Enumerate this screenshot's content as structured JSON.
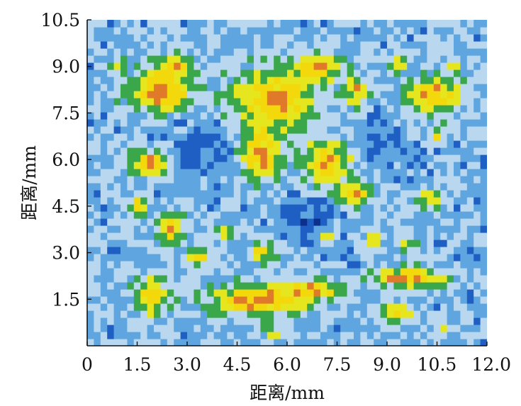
{
  "chart_data": {
    "type": "heatmap",
    "title": "",
    "xlabel": "距离/mm",
    "ylabel": "距离/mm",
    "xlim": [
      0,
      12.0
    ],
    "ylim": [
      0,
      10.5
    ],
    "x_ticks": [
      "0",
      "1.5",
      "3.0",
      "4.5",
      "6.0",
      "7.5",
      "9.0",
      "10.5",
      "12.0"
    ],
    "y_ticks": [
      "1.5",
      "3.0",
      "4.5",
      "6.0",
      "7.5",
      "9.0",
      "10.5"
    ],
    "grid": false,
    "legend": "none",
    "colormap": [
      "#0d2f8c",
      "#1f5fc4",
      "#5fa6e0",
      "#b9d8ef",
      "#3aa84a",
      "#e6e61e",
      "#f3d90c",
      "#e07a2a"
    ],
    "background_level": 0.35,
    "low_regions": [
      {
        "x": 3.5,
        "y": 6.4,
        "rx": 1.1,
        "ry": 1.1,
        "level": 0.05
      },
      {
        "x": 6.7,
        "y": 4.1,
        "rx": 1.1,
        "ry": 1.0,
        "level": 0.05
      },
      {
        "x": 8.8,
        "y": 6.4,
        "rx": 1.2,
        "ry": 1.1,
        "level": 0.1
      }
    ],
    "high_regions": [
      {
        "x": 2.2,
        "y": 8.2,
        "rx": 1.1,
        "ry": 0.8,
        "level": 0.95
      },
      {
        "x": 2.6,
        "y": 9.0,
        "rx": 0.6,
        "ry": 0.5,
        "level": 0.9
      },
      {
        "x": 5.6,
        "y": 7.9,
        "rx": 1.5,
        "ry": 1.2,
        "level": 0.95
      },
      {
        "x": 5.2,
        "y": 6.2,
        "rx": 0.7,
        "ry": 1.0,
        "level": 0.9
      },
      {
        "x": 7.2,
        "y": 5.9,
        "rx": 0.9,
        "ry": 0.9,
        "level": 0.9
      },
      {
        "x": 8.0,
        "y": 4.9,
        "rx": 0.7,
        "ry": 0.5,
        "level": 0.85
      },
      {
        "x": 6.9,
        "y": 9.0,
        "rx": 0.8,
        "ry": 0.6,
        "level": 0.9
      },
      {
        "x": 8.1,
        "y": 8.2,
        "rx": 0.5,
        "ry": 0.6,
        "level": 0.85
      },
      {
        "x": 10.4,
        "y": 8.1,
        "rx": 1.0,
        "ry": 0.7,
        "level": 0.9
      },
      {
        "x": 9.4,
        "y": 9.1,
        "rx": 0.3,
        "ry": 0.3,
        "level": 0.8
      },
      {
        "x": 1.9,
        "y": 5.9,
        "rx": 0.7,
        "ry": 0.5,
        "level": 0.9
      },
      {
        "x": 1.6,
        "y": 4.5,
        "rx": 0.3,
        "ry": 0.5,
        "level": 0.8
      },
      {
        "x": 2.5,
        "y": 3.8,
        "rx": 0.5,
        "ry": 0.7,
        "level": 0.85
      },
      {
        "x": 1.9,
        "y": 1.6,
        "rx": 0.6,
        "ry": 0.7,
        "level": 0.9
      },
      {
        "x": 5.2,
        "y": 1.5,
        "rx": 1.9,
        "ry": 0.6,
        "level": 0.95
      },
      {
        "x": 6.7,
        "y": 1.8,
        "rx": 1.0,
        "ry": 0.4,
        "level": 0.9
      },
      {
        "x": 9.6,
        "y": 2.2,
        "rx": 1.3,
        "ry": 0.4,
        "level": 0.9
      },
      {
        "x": 9.3,
        "y": 1.1,
        "rx": 0.6,
        "ry": 0.3,
        "level": 0.85
      },
      {
        "x": 3.4,
        "y": 2.9,
        "rx": 0.4,
        "ry": 0.4,
        "level": 0.8
      },
      {
        "x": 5.3,
        "y": 3.0,
        "rx": 0.5,
        "ry": 0.4,
        "level": 0.8
      },
      {
        "x": 8.6,
        "y": 3.4,
        "rx": 0.3,
        "ry": 0.4,
        "level": 0.8
      },
      {
        "x": 9.6,
        "y": 3.3,
        "rx": 0.4,
        "ry": 0.3,
        "level": 0.75
      },
      {
        "x": 10.3,
        "y": 4.7,
        "rx": 0.5,
        "ry": 0.4,
        "level": 0.75
      },
      {
        "x": 10.5,
        "y": 6.8,
        "rx": 0.3,
        "ry": 0.3,
        "level": 0.75
      },
      {
        "x": 4.2,
        "y": 3.7,
        "rx": 0.3,
        "ry": 0.3,
        "level": 0.75
      },
      {
        "x": 0.9,
        "y": 9.0,
        "rx": 0.3,
        "ry": 0.3,
        "level": 0.75
      },
      {
        "x": 11.0,
        "y": 9.0,
        "rx": 0.3,
        "ry": 0.3,
        "level": 0.7
      },
      {
        "x": 5.6,
        "y": 0.4,
        "rx": 0.4,
        "ry": 0.2,
        "level": 0.7
      },
      {
        "x": 10.7,
        "y": 0.5,
        "rx": 0.3,
        "ry": 0.2,
        "level": 0.7
      },
      {
        "x": 7.2,
        "y": 3.5,
        "rx": 0.3,
        "ry": 0.3,
        "level": 0.7
      }
    ]
  }
}
